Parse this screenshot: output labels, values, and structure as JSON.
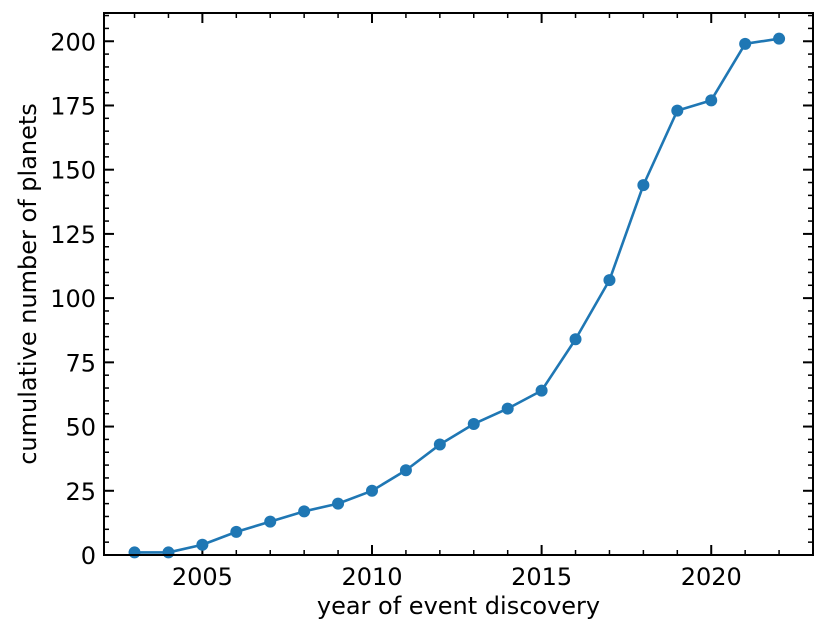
{
  "chart_data": {
    "type": "line",
    "title": "",
    "xlabel": "year of event discovery",
    "ylabel": "cumulative number of planets",
    "xlim": [
      2002.1,
      2023.0
    ],
    "ylim": [
      0,
      211
    ],
    "xticks": [
      2005,
      2010,
      2015,
      2020
    ],
    "yticks": [
      0,
      25,
      50,
      75,
      100,
      125,
      150,
      175,
      200
    ],
    "minor_x_step": 1,
    "minor_y_step": 5,
    "grid": false,
    "series": [
      {
        "color": "#1f77b4",
        "marker": "circle",
        "x": [
          2003,
          2004,
          2005,
          2006,
          2007,
          2008,
          2009,
          2010,
          2011,
          2012,
          2013,
          2014,
          2015,
          2016,
          2017,
          2018,
          2019,
          2020,
          2021,
          2022
        ],
        "y": [
          1,
          1,
          4,
          9,
          13,
          17,
          20,
          25,
          33,
          43,
          51,
          57,
          64,
          84,
          107,
          144,
          173,
          177,
          199,
          201
        ]
      }
    ]
  }
}
